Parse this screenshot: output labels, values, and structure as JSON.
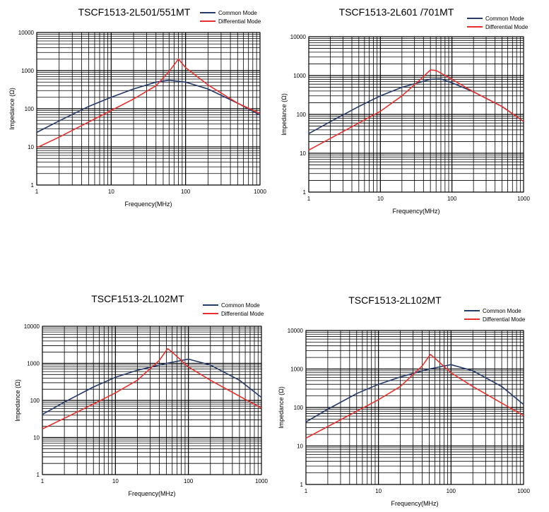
{
  "chart_data": [
    {
      "type": "line",
      "title": "TSCF1513-2L501/551MT",
      "xlabel": "Frequency(MHz)",
      "ylabel": "Impedance (Ω)",
      "xscale": "log",
      "yscale": "log",
      "xlim": [
        1,
        1000
      ],
      "ylim": [
        1,
        10000
      ],
      "xticks": [
        "1",
        "10",
        "100",
        "1000"
      ],
      "yticks": [
        "1",
        "10",
        "100",
        "1000",
        "10000"
      ],
      "legend": "top-right",
      "grid": true,
      "series": [
        {
          "name": "Common Mode",
          "color": "#243a6b",
          "x": [
            1,
            2,
            5,
            10,
            20,
            40,
            60,
            100,
            200,
            500,
            1000
          ],
          "y": [
            24,
            48,
            115,
            200,
            330,
            500,
            560,
            500,
            330,
            140,
            68
          ]
        },
        {
          "name": "Differential Mode",
          "color": "#e8312c",
          "x": [
            1,
            2,
            5,
            10,
            20,
            40,
            60,
            80,
            100,
            200,
            500,
            1000
          ],
          "y": [
            9.5,
            18,
            45,
            90,
            180,
            400,
            950,
            2000,
            1200,
            420,
            140,
            75
          ]
        }
      ]
    },
    {
      "type": "line",
      "title": "TSCF1513-2L601 /701MT",
      "xlabel": "Frequency(MHz)",
      "ylabel": "Impedance (Ω)",
      "xscale": "log",
      "yscale": "log",
      "xlim": [
        1,
        1000
      ],
      "ylim": [
        1,
        10000
      ],
      "xticks": [
        "1",
        "10",
        "100",
        "1000"
      ],
      "yticks": [
        "1",
        "10",
        "100",
        "1000",
        "10000"
      ],
      "legend": "top-right",
      "grid": true,
      "series": [
        {
          "name": "Common Mode",
          "color": "#243a6b",
          "x": [
            1,
            2,
            5,
            10,
            20,
            50,
            70,
            100,
            200,
            500,
            1000
          ],
          "y": [
            32,
            65,
            160,
            300,
            500,
            800,
            820,
            650,
            380,
            160,
            66
          ]
        },
        {
          "name": "Differential Mode",
          "color": "#e8312c",
          "x": [
            1,
            2,
            5,
            10,
            20,
            35,
            50,
            60,
            100,
            200,
            500,
            1000
          ],
          "y": [
            12,
            24,
            60,
            120,
            300,
            750,
            1400,
            1350,
            800,
            380,
            160,
            66
          ]
        }
      ]
    },
    {
      "type": "line",
      "title": "TSCF1513-2L102MT",
      "xlabel": "Frequency(MHz)",
      "ylabel": "Impedance (Ω)",
      "xscale": "log",
      "yscale": "log",
      "xlim": [
        1,
        1000
      ],
      "ylim": [
        1,
        10000
      ],
      "xticks": [
        "1",
        "10",
        "100",
        "1000"
      ],
      "yticks": [
        "1",
        "10",
        "100",
        "1000",
        "10000"
      ],
      "legend": "top-right",
      "grid": true,
      "series": [
        {
          "name": "Common Mode",
          "color": "#243a6b",
          "x": [
            1,
            2,
            5,
            10,
            20,
            50,
            100,
            200,
            500,
            1000
          ],
          "y": [
            42,
            90,
            230,
            420,
            650,
            1000,
            1300,
            900,
            350,
            120
          ]
        },
        {
          "name": "Differential Mode",
          "color": "#e8312c",
          "x": [
            1,
            2,
            5,
            10,
            20,
            40,
            52,
            60,
            100,
            200,
            500,
            1000
          ],
          "y": [
            17,
            33,
            80,
            160,
            350,
            1200,
            2500,
            2000,
            800,
            350,
            130,
            62
          ]
        }
      ]
    },
    {
      "type": "line",
      "title": "TSCF1513-2L102MT",
      "xlabel": "Frequency(MHz)",
      "ylabel": "Impedance (Ω)",
      "xscale": "log",
      "yscale": "log",
      "xlim": [
        1,
        1000
      ],
      "ylim": [
        1,
        10000
      ],
      "xticks": [
        "1",
        "10",
        "100",
        "1000"
      ],
      "yticks": [
        "1",
        "10",
        "100",
        "1000",
        "10000"
      ],
      "legend": "top-right",
      "grid": true,
      "series": [
        {
          "name": "Common Mode",
          "color": "#243a6b",
          "x": [
            1,
            2,
            5,
            10,
            20,
            50,
            100,
            200,
            500,
            1000
          ],
          "y": [
            42,
            90,
            230,
            400,
            620,
            1000,
            1300,
            900,
            350,
            120
          ]
        },
        {
          "name": "Differential Mode",
          "color": "#e8312c",
          "x": [
            1,
            2,
            5,
            10,
            20,
            40,
            52,
            60,
            100,
            200,
            500,
            1000
          ],
          "y": [
            16,
            32,
            80,
            160,
            350,
            1200,
            2400,
            1900,
            800,
            350,
            130,
            62
          ]
        }
      ]
    }
  ]
}
